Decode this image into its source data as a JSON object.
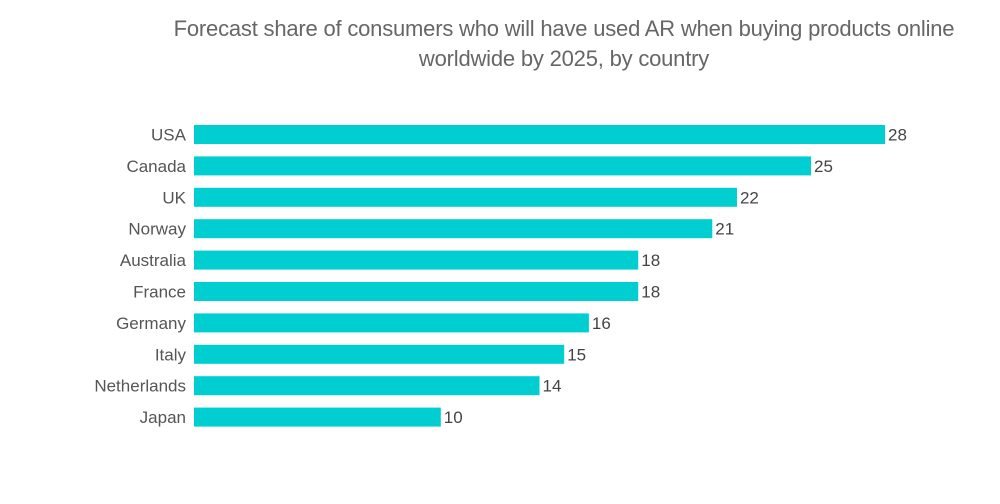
{
  "chart_data": {
    "type": "bar",
    "orientation": "horizontal",
    "title": "Forecast share of consumers who will have used AR when buying products online worldwide by 2025, by country",
    "title_lines": [
      "Forecast share of consumers who will have used AR when buying products online",
      "worldwide by 2025, by country"
    ],
    "categories": [
      "USA",
      "Canada",
      "UK",
      "Norway",
      "Australia",
      "France",
      "Germany",
      "Italy",
      "Netherlands",
      "Japan"
    ],
    "values": [
      28,
      25,
      22,
      21,
      18,
      18,
      16,
      15,
      14,
      10
    ],
    "xlabel": "",
    "ylabel": "",
    "xlim": [
      0,
      28
    ],
    "grid": false,
    "legend": "none",
    "data_labels": true,
    "bar_color": "#00CED1"
  }
}
